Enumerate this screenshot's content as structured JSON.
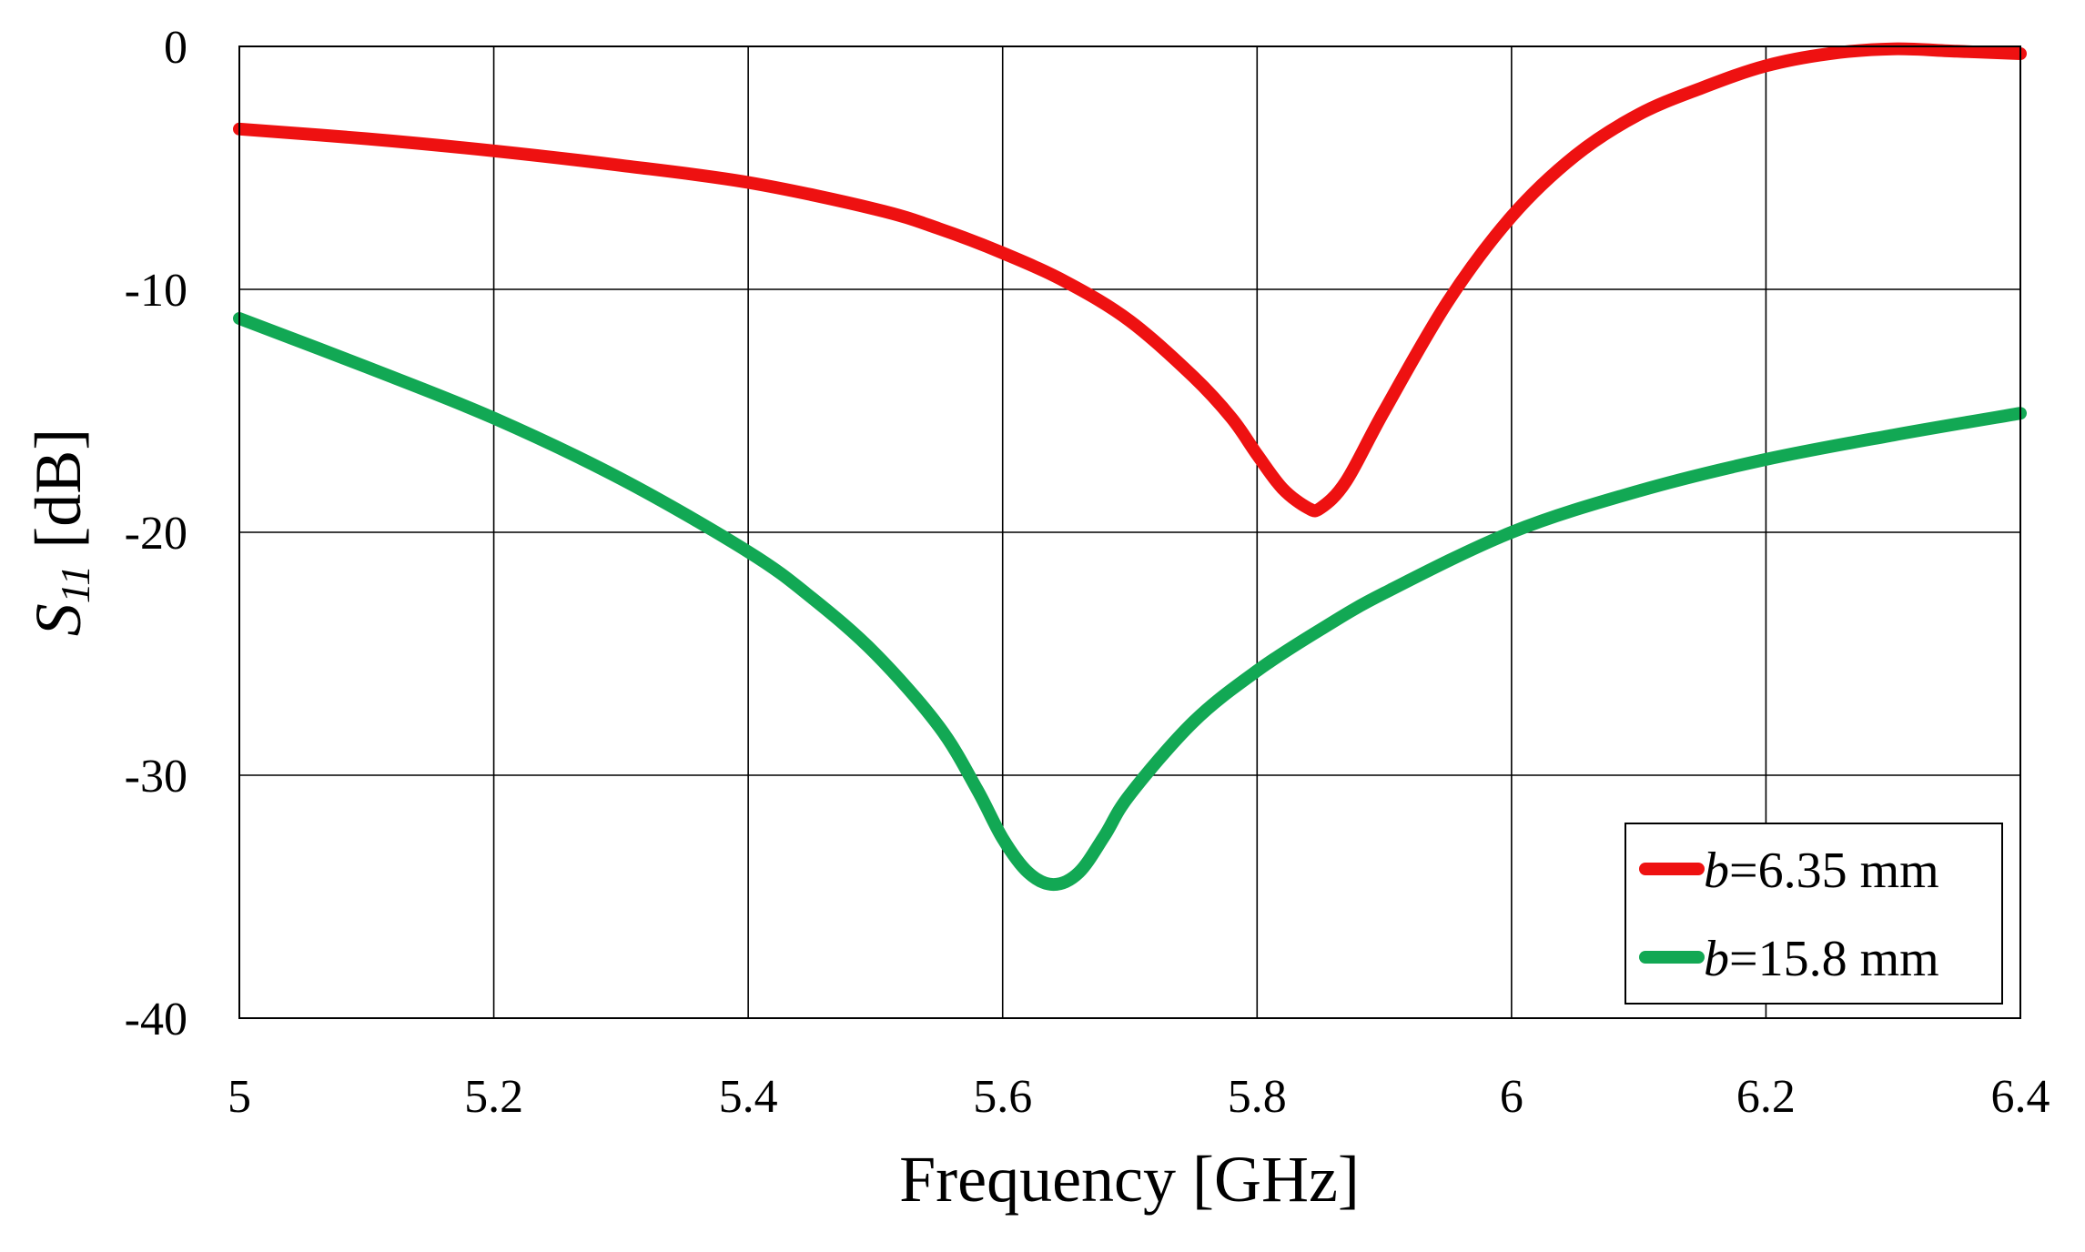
{
  "chart_data": {
    "type": "line",
    "xlabel": "Frequency [GHz]",
    "ylabel": {
      "main": "S",
      "sub": "11",
      "unit": " [dB]"
    },
    "xlim": [
      5,
      6.4
    ],
    "ylim": [
      -40,
      0
    ],
    "x_ticks": [
      "5",
      "5.2",
      "5.4",
      "5.6",
      "5.8",
      "6",
      "6.2",
      "6.4"
    ],
    "y_ticks": [
      "0",
      "-10",
      "-20",
      "-30",
      "-40"
    ],
    "grid": true,
    "legend_position": "bottom-right",
    "series": [
      {
        "name": "b=6.35 mm",
        "name_parts": {
          "var": "b",
          "rest": "=6.35 mm"
        },
        "color": "#ee1111",
        "x": [
          5.0,
          5.1,
          5.2,
          5.3,
          5.4,
          5.5,
          5.55,
          5.6,
          5.65,
          5.7,
          5.75,
          5.78,
          5.8,
          5.82,
          5.84,
          5.85,
          5.87,
          5.9,
          5.95,
          6.0,
          6.05,
          6.1,
          6.15,
          6.2,
          6.25,
          6.3,
          6.35,
          6.4
        ],
        "y": [
          -3.4,
          -3.8,
          -4.3,
          -4.9,
          -5.6,
          -6.7,
          -7.5,
          -8.5,
          -9.7,
          -11.3,
          -13.6,
          -15.3,
          -16.8,
          -18.2,
          -19.0,
          -19.0,
          -17.9,
          -15.0,
          -10.5,
          -7.0,
          -4.5,
          -2.8,
          -1.7,
          -0.8,
          -0.3,
          -0.1,
          -0.2,
          -0.3
        ]
      },
      {
        "name": "b=15.8 mm",
        "name_parts": {
          "var": "b",
          "rest": "=15.8 mm"
        },
        "color": "#12a854",
        "x": [
          5.0,
          5.1,
          5.2,
          5.3,
          5.4,
          5.45,
          5.5,
          5.55,
          5.58,
          5.6,
          5.62,
          5.64,
          5.66,
          5.68,
          5.7,
          5.75,
          5.8,
          5.85,
          5.9,
          6.0,
          6.1,
          6.2,
          6.3,
          6.4
        ],
        "y": [
          -11.2,
          -13.2,
          -15.3,
          -17.8,
          -20.8,
          -22.7,
          -25.0,
          -28.0,
          -30.6,
          -32.6,
          -34.0,
          -34.5,
          -34.0,
          -32.5,
          -30.8,
          -27.8,
          -25.7,
          -24.0,
          -22.5,
          -20.0,
          -18.3,
          -17.0,
          -16.0,
          -15.1
        ]
      }
    ]
  }
}
